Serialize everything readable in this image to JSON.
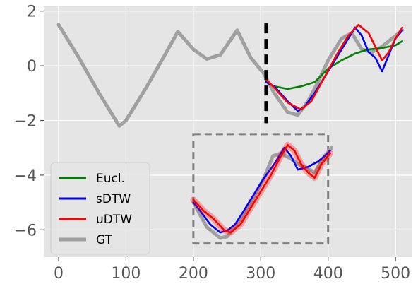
{
  "chart_data": {
    "type": "line",
    "title": "",
    "xlabel": "",
    "ylabel": "",
    "xlim": [
      -22,
      525
    ],
    "ylim": [
      -7.0,
      2.2
    ],
    "xticks": [
      0,
      100,
      200,
      300,
      400,
      500
    ],
    "yticks": [
      2,
      0,
      -2,
      -4,
      -6
    ],
    "ytick_labels": [
      "2",
      "0",
      "−2",
      "−4",
      "−6"
    ],
    "grid": true,
    "background": "#e5e5e5",
    "legend_position": "lower-left",
    "legend": [
      "Eucl.",
      "sDTW",
      "uDTW",
      "GT"
    ],
    "series": [
      {
        "name": "GT",
        "color": "#a0a0a0",
        "x": [
          0,
          30,
          60,
          90,
          100,
          130,
          160,
          177,
          200,
          220,
          240,
          265,
          285,
          305,
          320,
          340,
          355,
          370,
          385,
          400,
          420,
          435,
          450,
          465,
          480,
          495,
          510
        ],
        "y": [
          1.5,
          0.3,
          -1.0,
          -2.2,
          -2.0,
          -0.8,
          0.5,
          1.25,
          0.6,
          0.25,
          0.4,
          1.3,
          0.3,
          -0.3,
          -1.0,
          -1.7,
          -1.8,
          -1.3,
          -0.6,
          0.2,
          1.0,
          1.2,
          0.6,
          0.5,
          0.7,
          1.0,
          1.3
        ]
      },
      {
        "name": "Eucl.",
        "color": "#008000",
        "x": [
          308,
          320,
          340,
          360,
          380,
          400,
          420,
          440,
          460,
          480,
          500,
          510
        ],
        "y": [
          -0.6,
          -0.75,
          -0.85,
          -0.75,
          -0.6,
          -0.1,
          0.2,
          0.45,
          0.6,
          0.65,
          0.75,
          0.9
        ]
      },
      {
        "name": "sDTW",
        "color": "#0000ff",
        "x": [
          308,
          320,
          340,
          355,
          365,
          380,
          400,
          420,
          430,
          440,
          450,
          460,
          470,
          480,
          490,
          500,
          510
        ],
        "y": [
          -0.6,
          -0.75,
          -1.3,
          -1.65,
          -1.5,
          -1.0,
          -0.2,
          0.6,
          1.0,
          1.4,
          1.1,
          0.5,
          0.3,
          -0.2,
          0.4,
          1.0,
          1.3
        ]
      },
      {
        "name": "uDTW",
        "color": "#ff0000",
        "x": [
          308,
          320,
          340,
          360,
          375,
          395,
          415,
          430,
          445,
          460,
          470,
          480,
          490,
          500,
          510
        ],
        "y": [
          -0.5,
          -0.8,
          -1.35,
          -1.6,
          -1.3,
          -0.4,
          0.5,
          1.1,
          1.5,
          1.2,
          0.7,
          0.2,
          0.5,
          1.0,
          1.4
        ]
      }
    ],
    "inset": {
      "frame_x": [
        200,
        400
      ],
      "frame_y": [
        -6.5,
        -2.5
      ],
      "frame_color": "#808080",
      "series": [
        {
          "name": "GT",
          "color": "#a0a0a0",
          "x": [
            200,
            220,
            240,
            250,
            265,
            285,
            305,
            318,
            330,
            345,
            355,
            365,
            380,
            395,
            405
          ],
          "y": [
            -5.0,
            -5.9,
            -6.3,
            -6.25,
            -5.8,
            -5.0,
            -4.1,
            -3.3,
            -3.2,
            -3.4,
            -3.6,
            -3.7,
            -3.9,
            -3.3,
            -3.0
          ]
        },
        {
          "name": "sDTW",
          "color": "#0000ff",
          "x": [
            200,
            210,
            225,
            240,
            252,
            262,
            275,
            290,
            305,
            320,
            335,
            345,
            355,
            370,
            385,
            395,
            403
          ],
          "y": [
            -5.0,
            -5.3,
            -5.8,
            -6.1,
            -6.0,
            -5.8,
            -5.3,
            -4.7,
            -4.1,
            -3.6,
            -3.0,
            -3.3,
            -3.8,
            -3.7,
            -3.5,
            -3.3,
            -3.1
          ]
        },
        {
          "name": "uDTW",
          "color": "#ff0000",
          "x": [
            200,
            215,
            230,
            245,
            255,
            270,
            285,
            300,
            315,
            330,
            340,
            350,
            360,
            370,
            380,
            390,
            403
          ],
          "y": [
            -4.9,
            -5.3,
            -5.6,
            -6.0,
            -6.1,
            -5.8,
            -5.2,
            -4.6,
            -4.0,
            -3.3,
            -2.9,
            -3.1,
            -3.6,
            -3.9,
            -4.1,
            -3.6,
            -3.2
          ]
        }
      ]
    },
    "markers": [
      {
        "style": "vertical-dashed",
        "x": 308,
        "y_from": -2.1,
        "y_to": 1.55,
        "color": "#000000"
      }
    ]
  }
}
